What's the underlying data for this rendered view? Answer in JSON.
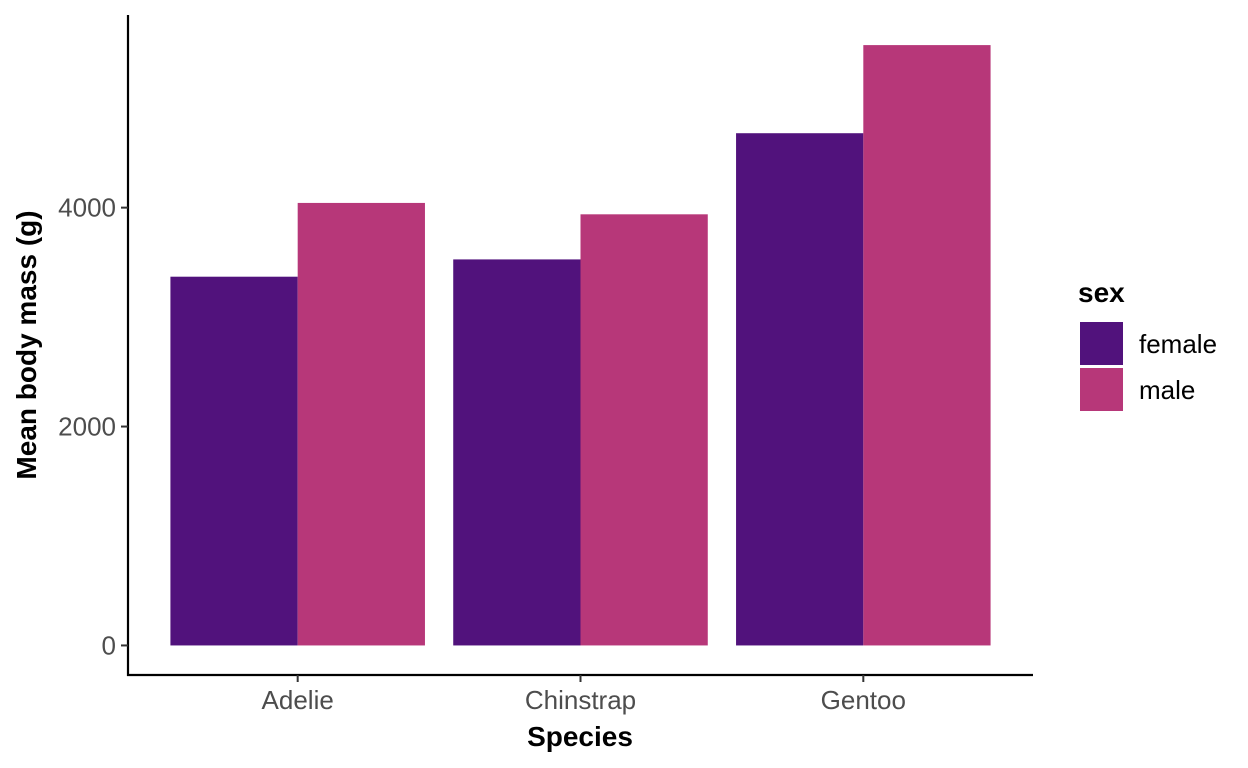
{
  "chart_data": {
    "type": "bar",
    "title": "",
    "xlabel": "Species",
    "ylabel": "Mean body mass (g)",
    "categories": [
      "Adelie",
      "Chinstrap",
      "Gentoo"
    ],
    "series": [
      {
        "name": "female",
        "values": [
          3369,
          3527,
          4680
        ],
        "color": "#51127c"
      },
      {
        "name": "male",
        "values": [
          4043,
          3939,
          5485
        ],
        "color": "#b73779"
      }
    ],
    "ylim": [
      -270,
      5760
    ],
    "y_ticks": [
      0,
      2000,
      4000
    ],
    "y_tick_labels": [
      "0",
      "2000",
      "4000"
    ],
    "grid": false,
    "legend": {
      "title": "sex",
      "placement": "right"
    }
  }
}
